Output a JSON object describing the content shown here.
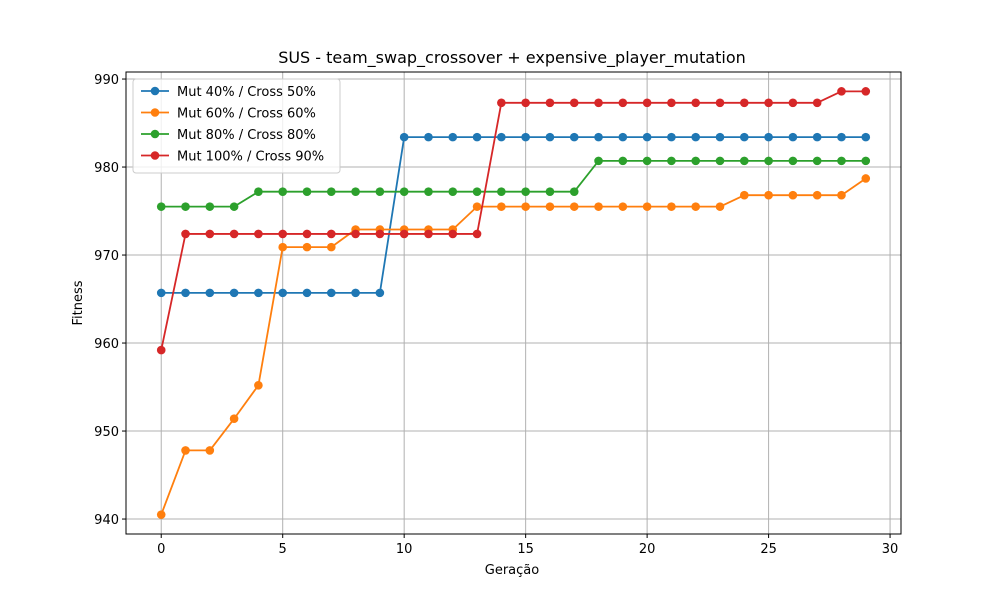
{
  "chart_data": {
    "type": "line",
    "title": "SUS - team_swap_crossover + expensive_player_mutation",
    "xlabel": "Geração",
    "ylabel": "Fitness",
    "xlim": [
      -1.45,
      30.45
    ],
    "ylim": [
      938.3,
      990.8
    ],
    "xticks": [
      0,
      5,
      10,
      15,
      20,
      25,
      30
    ],
    "yticks": [
      940,
      950,
      960,
      970,
      980,
      990
    ],
    "grid": true,
    "legend_position": "top-left",
    "x": [
      0,
      1,
      2,
      3,
      4,
      5,
      6,
      7,
      8,
      9,
      10,
      11,
      12,
      13,
      14,
      15,
      16,
      17,
      18,
      19,
      20,
      21,
      22,
      23,
      24,
      25,
      26,
      27,
      28,
      29
    ],
    "series": [
      {
        "name": "Mut 40% / Cross 50%",
        "color": "#1f77b4",
        "values": [
          965.7,
          965.7,
          965.7,
          965.7,
          965.7,
          965.7,
          965.7,
          965.7,
          965.7,
          965.7,
          983.4,
          983.4,
          983.4,
          983.4,
          983.4,
          983.4,
          983.4,
          983.4,
          983.4,
          983.4,
          983.4,
          983.4,
          983.4,
          983.4,
          983.4,
          983.4,
          983.4,
          983.4,
          983.4,
          983.4
        ]
      },
      {
        "name": "Mut 60% / Cross 60%",
        "color": "#ff7f0e",
        "values": [
          940.5,
          947.8,
          947.8,
          951.4,
          955.2,
          970.9,
          970.9,
          970.9,
          972.9,
          972.9,
          972.9,
          972.9,
          972.9,
          975.5,
          975.5,
          975.5,
          975.5,
          975.5,
          975.5,
          975.5,
          975.5,
          975.5,
          975.5,
          975.5,
          976.8,
          976.8,
          976.8,
          976.8,
          976.8,
          978.7
        ]
      },
      {
        "name": "Mut 80% / Cross 80%",
        "color": "#2ca02c",
        "values": [
          975.5,
          975.5,
          975.5,
          975.5,
          977.2,
          977.2,
          977.2,
          977.2,
          977.2,
          977.2,
          977.2,
          977.2,
          977.2,
          977.2,
          977.2,
          977.2,
          977.2,
          977.2,
          980.7,
          980.7,
          980.7,
          980.7,
          980.7,
          980.7,
          980.7,
          980.7,
          980.7,
          980.7,
          980.7,
          980.7
        ]
      },
      {
        "name": "Mut 100% / Cross 90%",
        "color": "#d62728",
        "values": [
          959.2,
          972.4,
          972.4,
          972.4,
          972.4,
          972.4,
          972.4,
          972.4,
          972.4,
          972.4,
          972.4,
          972.4,
          972.4,
          972.4,
          987.3,
          987.3,
          987.3,
          987.3,
          987.3,
          987.3,
          987.3,
          987.3,
          987.3,
          987.3,
          987.3,
          987.3,
          987.3,
          987.3,
          988.6,
          988.6
        ]
      }
    ]
  }
}
